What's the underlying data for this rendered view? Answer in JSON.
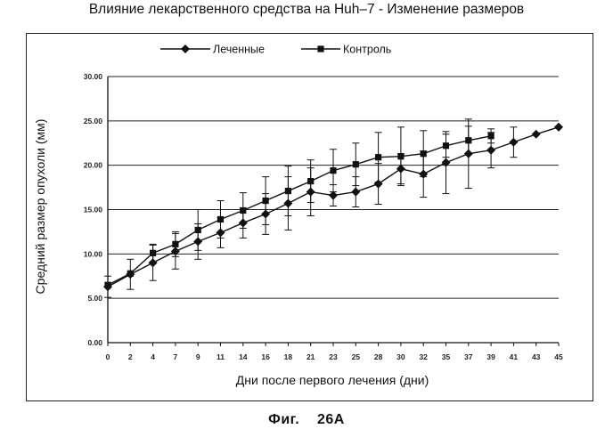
{
  "title": "Влияние лекарственного средства на Huh–7 - Изменение размеров",
  "figure_caption": "Фиг.    26A",
  "chart_data": {
    "type": "line",
    "title": "Влияние лекарственного средства на Huh–7 - Изменение размеров",
    "xlabel": "Дни после первого лечения (дни)",
    "ylabel": "Средний размер опухоли (мм)",
    "ylim": [
      0,
      30
    ],
    "y_ticks": [
      "0.00",
      "5.00",
      "10.00",
      "15.00",
      "20.00",
      "25.00",
      "30.00"
    ],
    "grid": "horizontal",
    "legend_position": "top",
    "categories": [
      "0",
      "2",
      "4",
      "7",
      "9",
      "11",
      "14",
      "16",
      "18",
      "21",
      "23",
      "25",
      "28",
      "30",
      "32",
      "35",
      "37",
      "39",
      "41",
      "43",
      "45"
    ],
    "series": [
      {
        "name": "Леченные",
        "marker": "diamond",
        "color": "#111111",
        "values": [
          6.3,
          7.7,
          9.0,
          10.3,
          11.4,
          12.4,
          13.5,
          14.5,
          15.7,
          17.0,
          16.6,
          17.0,
          17.9,
          19.6,
          19.0,
          20.3,
          21.3,
          21.7,
          22.6,
          23.5,
          24.3
        ],
        "errors": [
          1.2,
          1.7,
          2.0,
          2.0,
          2.0,
          1.7,
          1.7,
          2.3,
          3.0,
          2.7,
          1.2,
          1.7,
          2.3,
          1.7,
          2.6,
          3.5,
          3.9,
          2.0,
          1.7,
          0,
          0
        ]
      },
      {
        "name": "Контроль",
        "marker": "square",
        "color": "#111111",
        "values": [
          6.5,
          7.8,
          10.1,
          11.1,
          12.7,
          13.9,
          14.9,
          16.0,
          17.1,
          18.2,
          19.4,
          20.1,
          20.9,
          21.0,
          21.3,
          22.2,
          22.8,
          23.3,
          null,
          null,
          null
        ],
        "errors": [
          0,
          0,
          1.0,
          1.4,
          2.3,
          2.1,
          2.0,
          2.7,
          2.8,
          2.4,
          2.4,
          2.4,
          2.8,
          3.3,
          2.6,
          1.3,
          1.6,
          0.8,
          0,
          0,
          0
        ]
      }
    ]
  }
}
